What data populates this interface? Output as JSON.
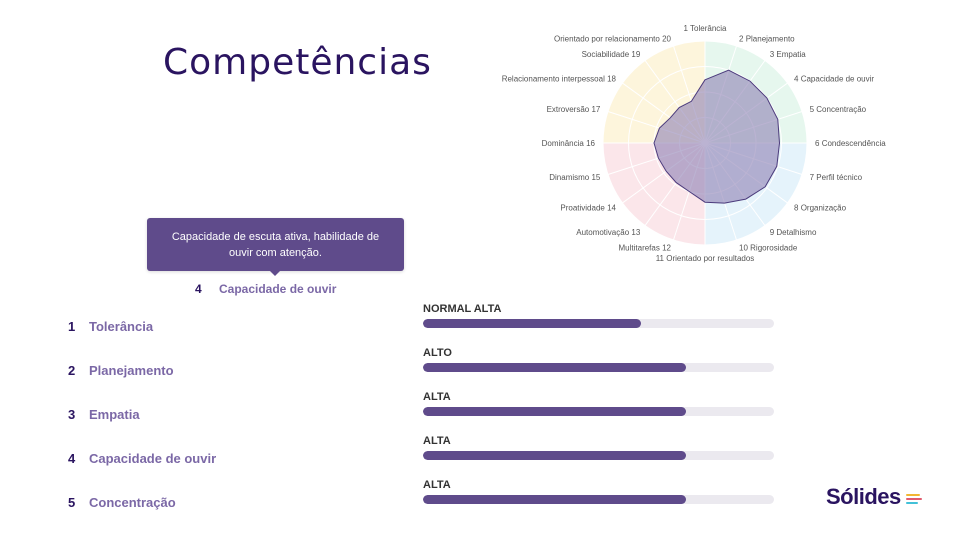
{
  "title": "Competências",
  "tooltip": {
    "text": "Capacidade de escuta ativa, habilidade de ouvir com atenção."
  },
  "hover_item": {
    "number": "4",
    "name": "Capacidade de ouvir"
  },
  "competencies": [
    {
      "number": "1",
      "name": "Tolerância",
      "level": "NORMAL ALTA",
      "progress": 0.62
    },
    {
      "number": "2",
      "name": "Planejamento",
      "level": "ALTO",
      "progress": 0.75
    },
    {
      "number": "3",
      "name": "Empatia",
      "level": "ALTA",
      "progress": 0.75
    },
    {
      "number": "4",
      "name": "Capacidade de ouvir",
      "level": "ALTA",
      "progress": 0.75
    },
    {
      "number": "5",
      "name": "Concentração",
      "level": "ALTA",
      "progress": 0.75
    }
  ],
  "radar": {
    "axes": [
      {
        "number": "1",
        "name": "Tolerância",
        "value": 0.62
      },
      {
        "number": "2",
        "name": "Planejamento",
        "value": 0.75
      },
      {
        "number": "3",
        "name": "Empatia",
        "value": 0.75
      },
      {
        "number": "4",
        "name": "Capacidade de ouvir",
        "value": 0.75
      },
      {
        "number": "5",
        "name": "Concentração",
        "value": 0.75
      },
      {
        "number": "6",
        "name": "Condescendência",
        "value": 0.73
      },
      {
        "number": "7",
        "name": "Perfil técnico",
        "value": 0.74
      },
      {
        "number": "8",
        "name": "Organização",
        "value": 0.73
      },
      {
        "number": "9",
        "name": "Detalhismo",
        "value": 0.68
      },
      {
        "number": "10",
        "name": "Rigorosidade",
        "value": 0.62
      },
      {
        "number": "11",
        "name": "Orientado por resultados",
        "value": 0.58
      },
      {
        "number": "12",
        "name": "Multitarefas",
        "value": 0.5
      },
      {
        "number": "13",
        "name": "Automotivação",
        "value": 0.48
      },
      {
        "number": "14",
        "name": "Proatividade",
        "value": 0.47
      },
      {
        "number": "15",
        "name": "Dinamismo",
        "value": 0.48
      },
      {
        "number": "16",
        "name": "Dominância",
        "value": 0.5
      },
      {
        "number": "17",
        "name": "Extroversão",
        "value": 0.47
      },
      {
        "number": "18",
        "name": "Relacionamento interpessoal",
        "value": 0.42
      },
      {
        "number": "19",
        "name": "Sociabilidade",
        "value": 0.43
      },
      {
        "number": "20",
        "name": "Orientado por relacionamento",
        "value": 0.43
      }
    ],
    "sector_colors": [
      "#e6f7ee",
      "#e5f3fb",
      "#fbe6ea",
      "#fdf5dc"
    ],
    "fill_color": "#8e80b4",
    "stroke_color": "#4b3b7c"
  },
  "brand": {
    "name": "Sólides",
    "bar_colors": [
      "#f2b632",
      "#e05a6d",
      "#42c1d8"
    ]
  }
}
